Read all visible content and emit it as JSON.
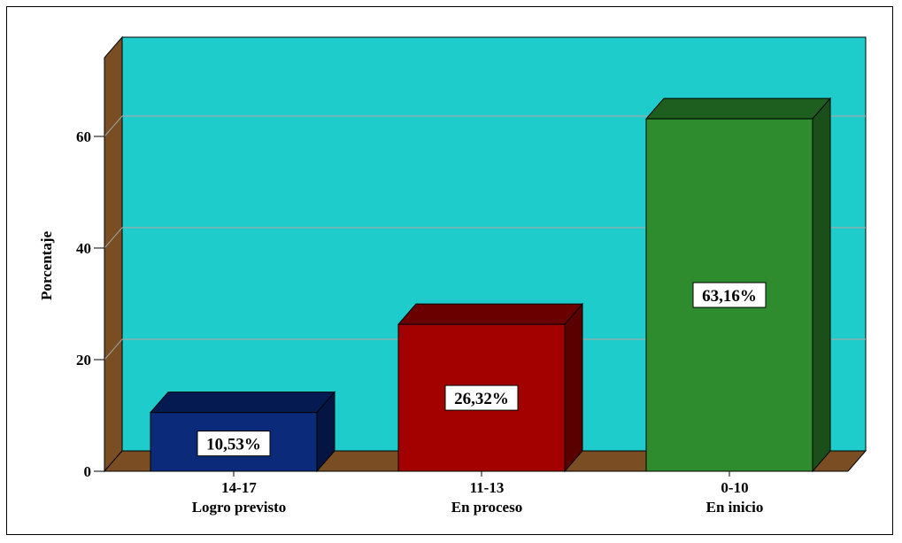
{
  "chart_data": {
    "type": "bar",
    "categories": [
      [
        "14-17",
        "Logro previsto"
      ],
      [
        "11-13",
        "En proceso"
      ],
      [
        "0-10",
        "En inicio"
      ]
    ],
    "values": [
      10.53,
      26.32,
      63.16
    ],
    "data_labels": [
      "10,53%",
      "26,32%",
      "63,16%"
    ],
    "ylabel": "Porcentaje",
    "yticks": [
      "0",
      "20",
      "40",
      "60"
    ],
    "ytick_values": [
      0,
      20,
      40,
      60
    ],
    "ylim": [
      0,
      70
    ],
    "grid": true,
    "three_d": true,
    "colors": {
      "bars": [
        "#0b2a7a",
        "#a30000",
        "#2e8b2e"
      ],
      "bar_tops": [
        "#061a52",
        "#6b0000",
        "#1e5e1e"
      ],
      "bar_sides": [
        "#041544",
        "#5a0000",
        "#1a4f1a"
      ],
      "back_wall": "#1ecccc",
      "floor": "#7a4e22",
      "side_wall": "#7a4e22",
      "gridline": "#9aa9a9"
    }
  }
}
